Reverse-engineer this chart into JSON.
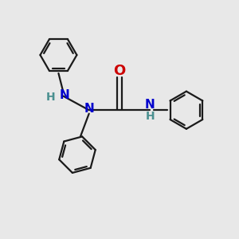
{
  "bg_color": "#e8e8e8",
  "bond_color": "#1a1a1a",
  "N_color": "#0000cc",
  "H_color": "#4a9090",
  "O_color": "#cc0000",
  "line_width": 1.6,
  "font_size_atom": 11,
  "fig_size": [
    3.0,
    3.0
  ],
  "dpi": 100,
  "xlim": [
    0,
    10
  ],
  "ylim": [
    0,
    10
  ]
}
